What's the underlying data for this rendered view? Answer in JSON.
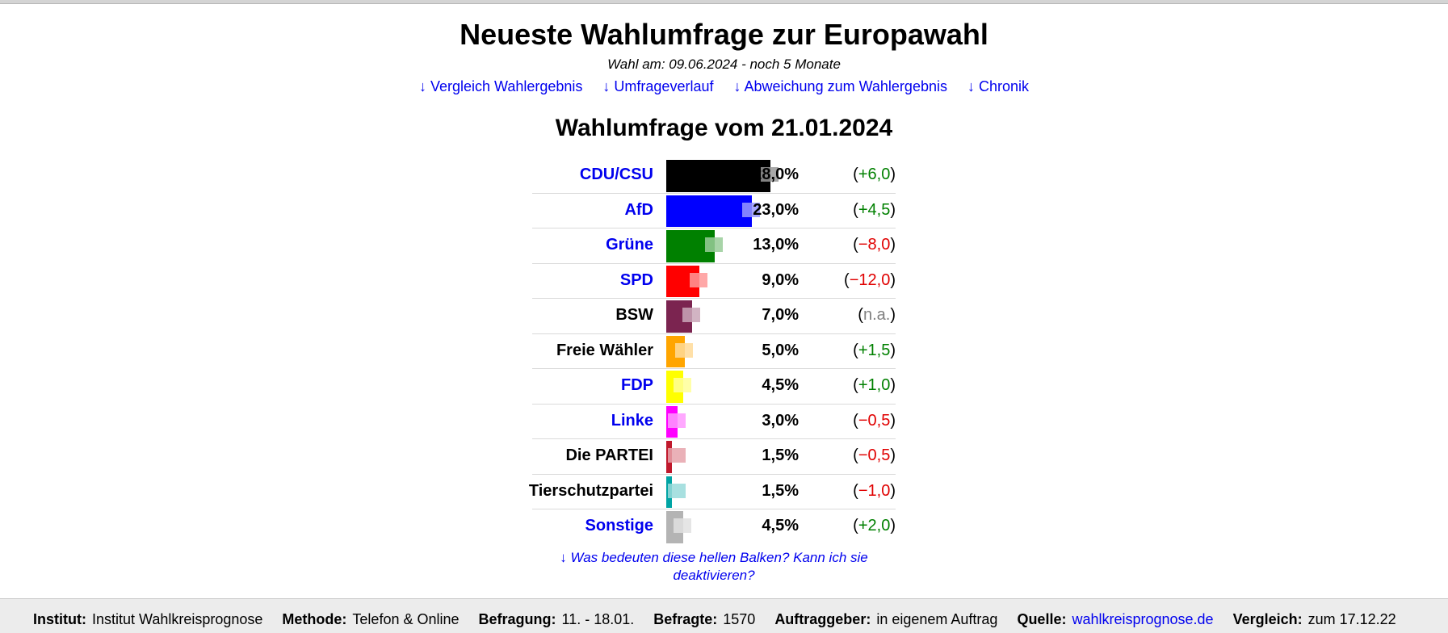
{
  "page": {
    "title": "Neueste Wahlumfrage zur Europawahl",
    "subtitle": "Wahl am: 09.06.2024 - noch 5 Monate",
    "nav": [
      "↓ Vergleich Wahlergebnis",
      "↓ Umfrageverlauf",
      "↓ Abweichung zum Wahlergebnis",
      "↓ Chronik"
    ],
    "poll_title": "Wahlumfrage vom 21.01.2024",
    "note": "↓ Was bedeuten diese hellen Balken? Kann ich sie deaktivieren?"
  },
  "chart_data": {
    "type": "bar",
    "orientation": "horizontal",
    "title": "Wahlumfrage vom 21.01.2024",
    "unit": "%",
    "xlim": [
      0,
      35
    ],
    "categories": [
      "CDU/CSU",
      "AfD",
      "Grüne",
      "SPD",
      "BSW",
      "Freie Wähler",
      "FDP",
      "Linke",
      "Die PARTEI",
      "Tierschutzpartei",
      "Sonstige"
    ],
    "values": [
      28.0,
      23.0,
      13.0,
      9.0,
      7.0,
      5.0,
      4.5,
      3.0,
      1.5,
      1.5,
      4.5
    ],
    "value_labels": [
      "28,0%",
      "23,0%",
      "13,0%",
      "9,0%",
      "7,0%",
      "5,0%",
      "4,5%",
      "3,0%",
      "1,5%",
      "1,5%",
      "4,5%"
    ],
    "change_labels": [
      "+6,0",
      "+4,5",
      "−8,0",
      "−12,0",
      "n.a.",
      "+1,5",
      "+1,0",
      "−0,5",
      "−0,5",
      "−1,0",
      "+2,0"
    ],
    "change_signs": [
      "pos",
      "pos",
      "neg",
      "neg",
      "na",
      "pos",
      "pos",
      "neg",
      "neg",
      "neg",
      "pos"
    ],
    "linked": [
      true,
      true,
      true,
      true,
      false,
      false,
      true,
      true,
      false,
      false,
      true
    ],
    "colors": [
      "#000000",
      "#0000ff",
      "#008000",
      "#ff0000",
      "#7b2450",
      "#ffa500",
      "#ffff00",
      "#ff00ff",
      "#c0182c",
      "#00a4a4",
      "#b4b4b4"
    ]
  },
  "footer": [
    {
      "key": "Institut:",
      "value": "Institut Wahlkreisprognose"
    },
    {
      "key": "Methode:",
      "value": "Telefon & Online"
    },
    {
      "key": "Befragung:",
      "value": "11. - 18.01."
    },
    {
      "key": "Befragte:",
      "value": "1570"
    },
    {
      "key": "Auftraggeber:",
      "value": "in eigenem Auftrag"
    },
    {
      "key": "Quelle:",
      "value": "wahlkreisprognose.de",
      "link": true
    },
    {
      "key": "Vergleich:",
      "value": "zum 17.12.22"
    }
  ]
}
